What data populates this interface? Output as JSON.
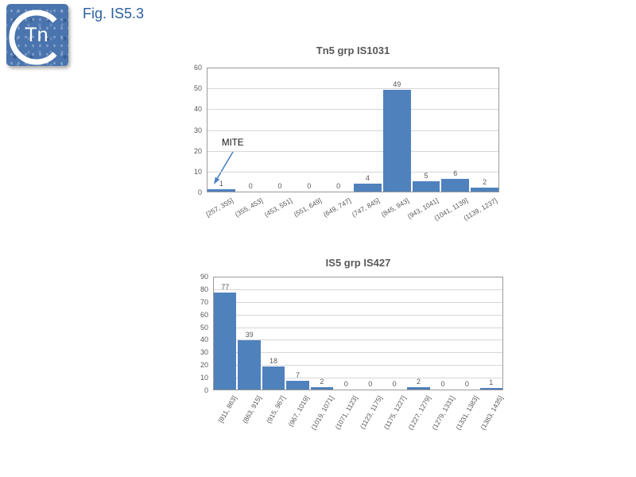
{
  "header": {
    "title": "Fig. IS5.3"
  },
  "logo": {
    "text": "Tn"
  },
  "colors": {
    "bar": "#4F81BD",
    "heading_blue": "#2a5f9e",
    "axis_text": "#595959",
    "gridline": "#d6d6d6",
    "plot_border": "#9a9a9a",
    "arrow_blue": "#4a80c4"
  },
  "chart_data": [
    {
      "type": "bar",
      "title": "Tn5 grp IS1031",
      "categories": [
        "[257, 355]",
        "(355, 453]",
        "(453, 551]",
        "(551, 649]",
        "(649, 747]",
        "(747, 845]",
        "(845, 943]",
        "(943, 1041]",
        "(1041, 1139]",
        "(1139, 1237]"
      ],
      "values": [
        1,
        0,
        0,
        0,
        0,
        4,
        49,
        5,
        6,
        2
      ],
      "xlabel": "",
      "ylabel": "",
      "ylim": [
        0,
        60
      ],
      "ytick_step": 10,
      "grid": true,
      "legend": "none",
      "bar_color": "#4F81BD",
      "annotation": {
        "text": "MITE",
        "target_category": "[257, 355]"
      }
    },
    {
      "type": "bar",
      "title": "IS5 grp IS427",
      "categories": [
        "[811, 863]",
        "(863, 915]",
        "(915, 967]",
        "(967, 1019]",
        "(1019, 1071]",
        "(1071, 1123]",
        "(1123, 1175]",
        "(1175, 1227]",
        "(1227, 1279]",
        "(1279, 1331]",
        "(1331, 1383]",
        "(1383, 1435]"
      ],
      "values": [
        77,
        39,
        18,
        7,
        2,
        0,
        0,
        0,
        2,
        0,
        0,
        1
      ],
      "xlabel": "",
      "ylabel": "",
      "ylim": [
        0,
        90
      ],
      "ytick_step": 10,
      "grid": true,
      "legend": "none",
      "bar_color": "#4F81BD"
    }
  ]
}
